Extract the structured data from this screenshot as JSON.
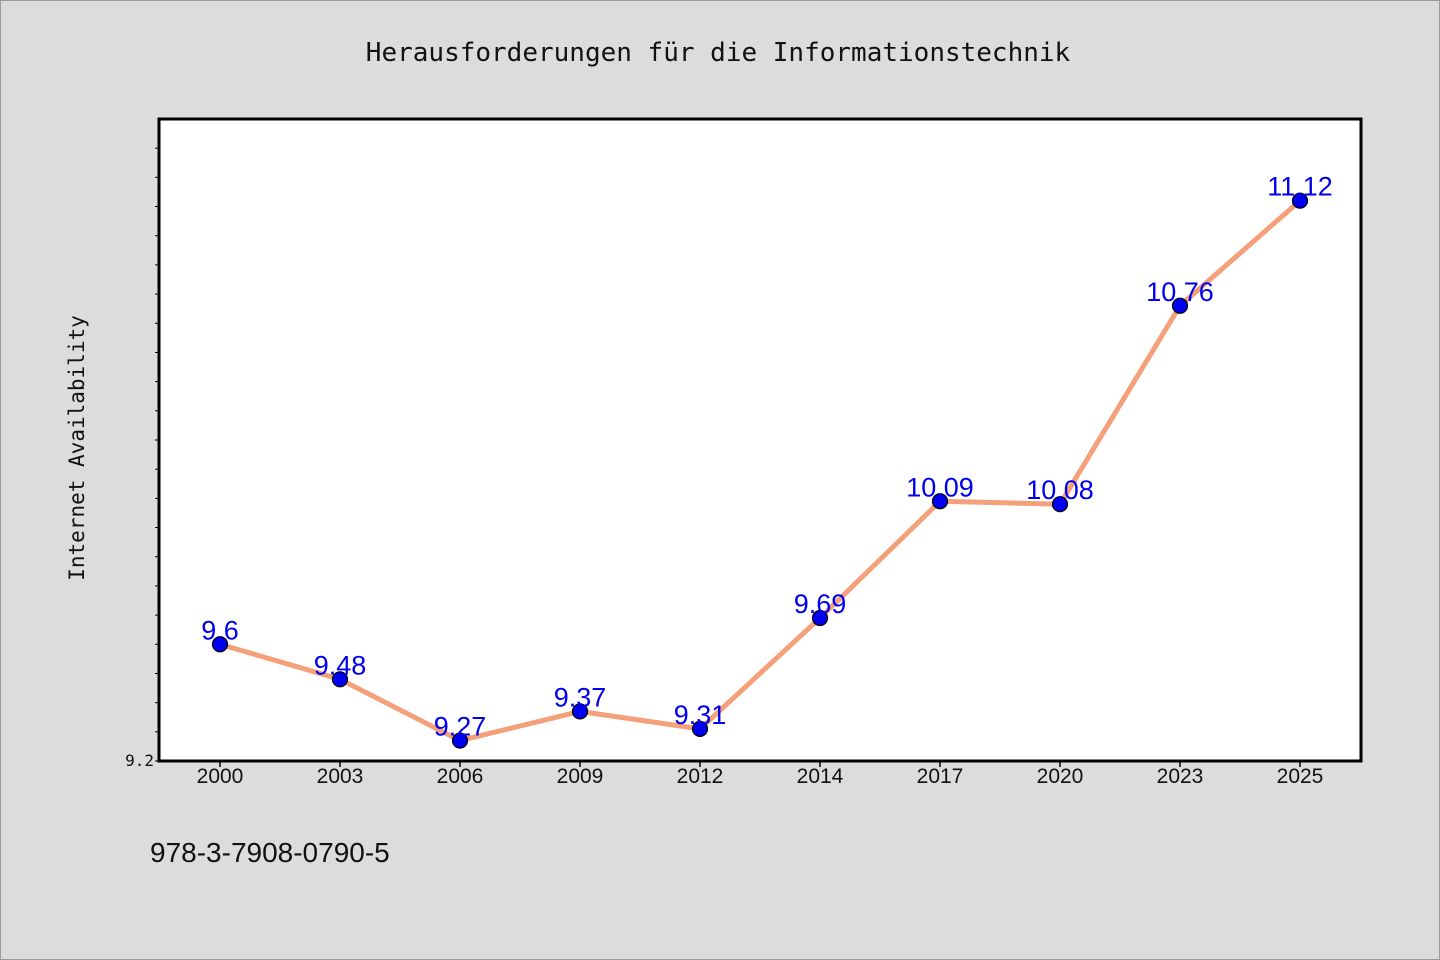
{
  "chart_data": {
    "type": "line",
    "title": "Herausforderungen für die Informationstechnik",
    "xlabel": "",
    "ylabel": "Internet Availability",
    "x": [
      "2000",
      "2003",
      "2006",
      "2009",
      "2012",
      "2014",
      "2017",
      "2020",
      "2023",
      "2025"
    ],
    "series": [
      {
        "values": [
          9.6,
          9.48,
          9.27,
          9.37,
          9.31,
          9.69,
          10.09,
          10.08,
          10.76,
          11.12
        ]
      }
    ],
    "data_labels": [
      "9.6",
      "9.48",
      "9.27",
      "9.37",
      "9.31",
      "9.69",
      "10.09",
      "10.08",
      "10.76",
      "11.12"
    ],
    "ylim": [
      9.2,
      11.4
    ],
    "ytick_labels": [
      "9.2"
    ],
    "grid": false,
    "legend": "none",
    "colors": {
      "line": "#f4a07a",
      "marker": "#0000ee",
      "marker_edge": "#000000",
      "label": "#0000ee",
      "plot_bg": "#ffffff",
      "page_bg": "#dcdcdc"
    }
  },
  "footer": {
    "isbn": "978-3-7908-0790-5"
  }
}
